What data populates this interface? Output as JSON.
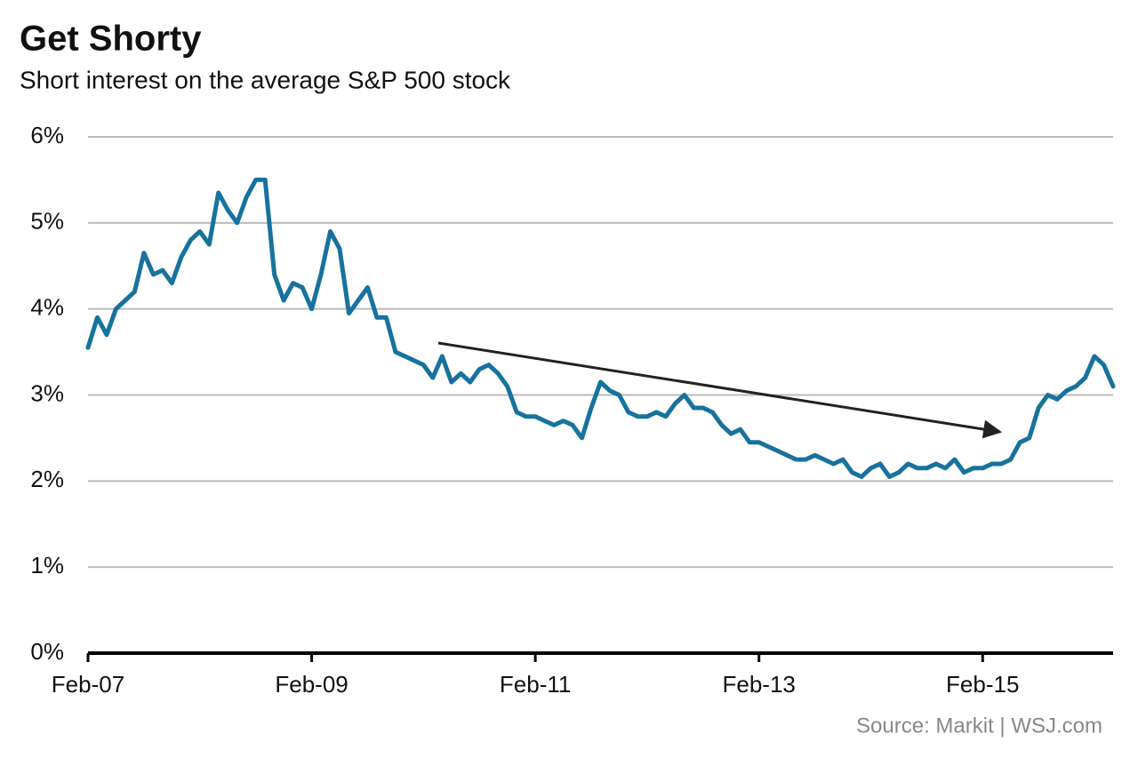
{
  "chart_data": {
    "type": "line",
    "title": "Get Shorty",
    "subtitle": "Short interest on the average S&P 500 stock",
    "source": "Source: Markit  |  WSJ.com",
    "x": [
      "2007-02",
      "2007-03",
      "2007-04",
      "2007-05",
      "2007-06",
      "2007-07",
      "2007-08",
      "2007-09",
      "2007-10",
      "2007-11",
      "2007-12",
      "2008-01",
      "2008-02",
      "2008-03",
      "2008-04",
      "2008-05",
      "2008-06",
      "2008-07",
      "2008-08",
      "2008-09",
      "2008-10",
      "2008-11",
      "2008-12",
      "2009-01",
      "2009-02",
      "2009-03",
      "2009-04",
      "2009-05",
      "2009-06",
      "2009-07",
      "2009-08",
      "2009-09",
      "2009-10",
      "2009-11",
      "2009-12",
      "2010-01",
      "2010-02",
      "2010-03",
      "2010-04",
      "2010-05",
      "2010-06",
      "2010-07",
      "2010-08",
      "2010-09",
      "2010-10",
      "2010-11",
      "2010-12",
      "2011-01",
      "2011-02",
      "2011-03",
      "2011-04",
      "2011-05",
      "2011-06",
      "2011-07",
      "2011-08",
      "2011-09",
      "2011-10",
      "2011-11",
      "2011-12",
      "2012-01",
      "2012-02",
      "2012-03",
      "2012-04",
      "2012-05",
      "2012-06",
      "2012-07",
      "2012-08",
      "2012-09",
      "2012-10",
      "2012-11",
      "2012-12",
      "2013-01",
      "2013-02",
      "2013-03",
      "2013-04",
      "2013-05",
      "2013-06",
      "2013-07",
      "2013-08",
      "2013-09",
      "2013-10",
      "2013-11",
      "2013-12",
      "2014-01",
      "2014-02",
      "2014-03",
      "2014-04",
      "2014-05",
      "2014-06",
      "2014-07",
      "2014-08",
      "2014-09",
      "2014-10",
      "2014-11",
      "2014-12",
      "2015-01",
      "2015-02",
      "2015-03",
      "2015-04",
      "2015-05",
      "2015-06",
      "2015-07",
      "2015-08",
      "2015-09",
      "2015-10",
      "2015-11",
      "2015-12",
      "2016-01",
      "2016-02",
      "2016-03",
      "2016-04"
    ],
    "series": [
      {
        "name": "Short interest",
        "color": "#17729d",
        "values": [
          3.55,
          3.9,
          3.7,
          4.0,
          4.1,
          4.2,
          4.65,
          4.4,
          4.45,
          4.3,
          4.6,
          4.8,
          4.9,
          4.75,
          5.35,
          5.15,
          5.0,
          5.3,
          5.5,
          5.5,
          4.4,
          4.1,
          4.3,
          4.25,
          4.0,
          4.4,
          4.9,
          4.7,
          3.95,
          4.1,
          4.25,
          3.9,
          3.9,
          3.5,
          3.45,
          3.4,
          3.35,
          3.2,
          3.45,
          3.15,
          3.25,
          3.15,
          3.3,
          3.35,
          3.25,
          3.1,
          2.8,
          2.75,
          2.75,
          2.7,
          2.65,
          2.7,
          2.65,
          2.5,
          2.85,
          3.15,
          3.05,
          3.0,
          2.8,
          2.75,
          2.75,
          2.8,
          2.75,
          2.9,
          3.0,
          2.85,
          2.85,
          2.8,
          2.65,
          2.55,
          2.6,
          2.45,
          2.45,
          2.4,
          2.35,
          2.3,
          2.25,
          2.25,
          2.3,
          2.25,
          2.2,
          2.25,
          2.1,
          2.05,
          2.15,
          2.2,
          2.05,
          2.1,
          2.2,
          2.15,
          2.15,
          2.2,
          2.15,
          2.25,
          2.1,
          2.15,
          2.15,
          2.2,
          2.2,
          2.25,
          2.45,
          2.5,
          2.85,
          3.0,
          2.95,
          3.05,
          3.1,
          3.2,
          3.45,
          3.35,
          3.1
        ]
      }
    ],
    "xlim": [
      "2007-02",
      "2016-04"
    ],
    "xticks": [
      {
        "value": "2007-02",
        "label": "Feb-07"
      },
      {
        "value": "2009-02",
        "label": "Feb-09"
      },
      {
        "value": "2011-02",
        "label": "Feb-11"
      },
      {
        "value": "2013-02",
        "label": "Feb-13"
      },
      {
        "value": "2015-02",
        "label": "Feb-15"
      }
    ],
    "ylim": [
      0,
      6
    ],
    "yticks": [
      {
        "value": 0,
        "label": "0%"
      },
      {
        "value": 1,
        "label": "1%"
      },
      {
        "value": 2,
        "label": "2%"
      },
      {
        "value": 3,
        "label": "3%"
      },
      {
        "value": 4,
        "label": "4%"
      },
      {
        "value": 5,
        "label": "5%"
      },
      {
        "value": 6,
        "label": "6%"
      }
    ],
    "grid": true
  }
}
